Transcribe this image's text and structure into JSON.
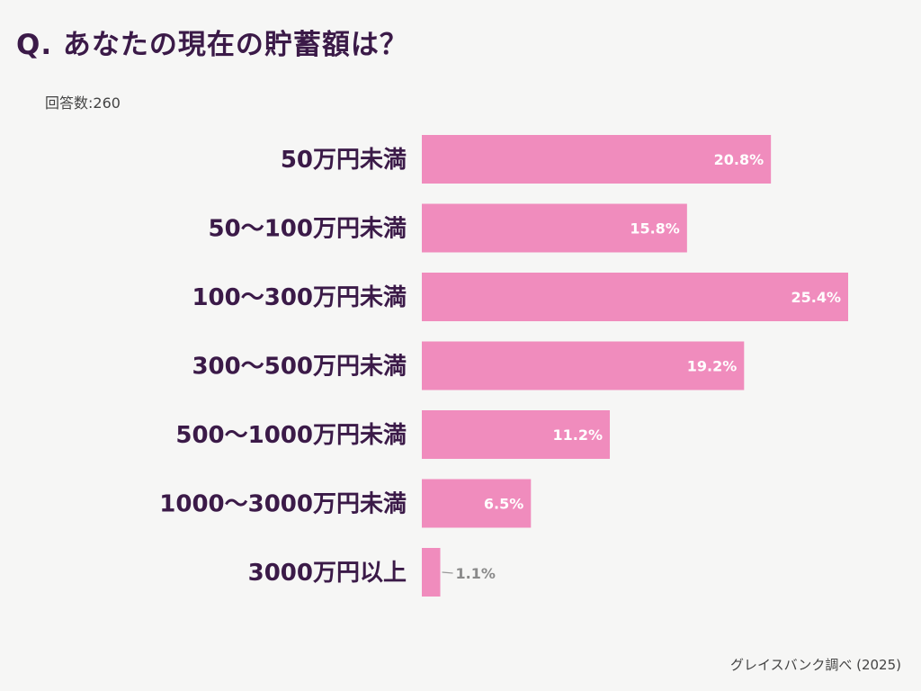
{
  "title": "Q. あなたの現在の貯蓄額は？",
  "respondents": "回答数:260",
  "source": "グレイスバンク調べ (2025)",
  "colors": {
    "bar": "#f08cbd",
    "text": "#3b1a48",
    "background": "#f6f6f5"
  },
  "chart_data": {
    "type": "bar",
    "orientation": "horizontal",
    "categories": [
      "50万円未満",
      "50〜100万円未満",
      "100〜300万円未満",
      "300〜500万円未満",
      "500〜1000万円未満",
      "1000〜3000万円未満",
      "3000万円以上"
    ],
    "values": [
      20.8,
      15.8,
      25.4,
      19.2,
      11.2,
      6.5,
      1.1
    ],
    "labels": [
      "20.8%",
      "15.8%",
      "25.4%",
      "19.2%",
      "11.2%",
      "6.5%",
      "1.1%"
    ],
    "unit": "%",
    "grid": false
  }
}
